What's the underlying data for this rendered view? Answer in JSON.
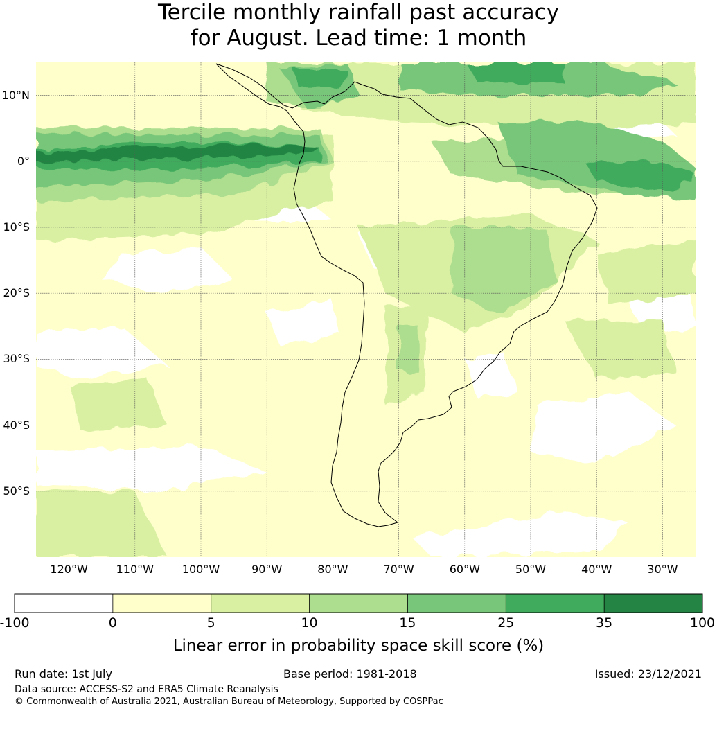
{
  "title": {
    "line1": "Tercile monthly rainfall past accuracy",
    "line2": "for August. Lead time: 1 month"
  },
  "map": {
    "region": "South America",
    "projection_extent": {
      "lon_min": -125,
      "lon_max": -25,
      "lat_min": -60,
      "lat_max": 15
    },
    "lat_ticks": [
      {
        "value": 10,
        "label": "10°N"
      },
      {
        "value": 0,
        "label": "0°"
      },
      {
        "value": -10,
        "label": "10°S"
      },
      {
        "value": -20,
        "label": "20°S"
      },
      {
        "value": -30,
        "label": "30°S"
      },
      {
        "value": -40,
        "label": "40°S"
      },
      {
        "value": -50,
        "label": "50°S"
      }
    ],
    "lon_ticks": [
      {
        "value": -120,
        "label": "120°W"
      },
      {
        "value": -110,
        "label": "110°W"
      },
      {
        "value": -100,
        "label": "100°W"
      },
      {
        "value": -90,
        "label": "90°W"
      },
      {
        "value": -80,
        "label": "80°W"
      },
      {
        "value": -70,
        "label": "70°W"
      },
      {
        "value": -60,
        "label": "60°W"
      },
      {
        "value": -50,
        "label": "50°W"
      },
      {
        "value": -40,
        "label": "40°W"
      },
      {
        "value": -30,
        "label": "30°W"
      }
    ],
    "gridlines": true
  },
  "colorbar": {
    "bounds": [
      -100,
      0,
      5,
      10,
      15,
      25,
      35,
      100
    ],
    "tick_labels": [
      "-100",
      "0",
      "5",
      "10",
      "15",
      "25",
      "35",
      "100"
    ],
    "colors": [
      "#ffffff",
      "#ffffcc",
      "#d9f0a3",
      "#addd8e",
      "#78c679",
      "#41ab5d",
      "#238443"
    ],
    "label": "Linear error in probability space skill score (%)"
  },
  "footer": {
    "run_date": "Run date: 1st July",
    "base_period": "Base period: 1981-2018",
    "issued": "Issued: 23/12/2021",
    "data_source": "Data source: ACCESS-S2 and ERA5 Climate Reanalysis",
    "copyright": "© Commonwealth of Australia 2021, Australian Bureau of Meteorology, Supported by COSPPac"
  }
}
